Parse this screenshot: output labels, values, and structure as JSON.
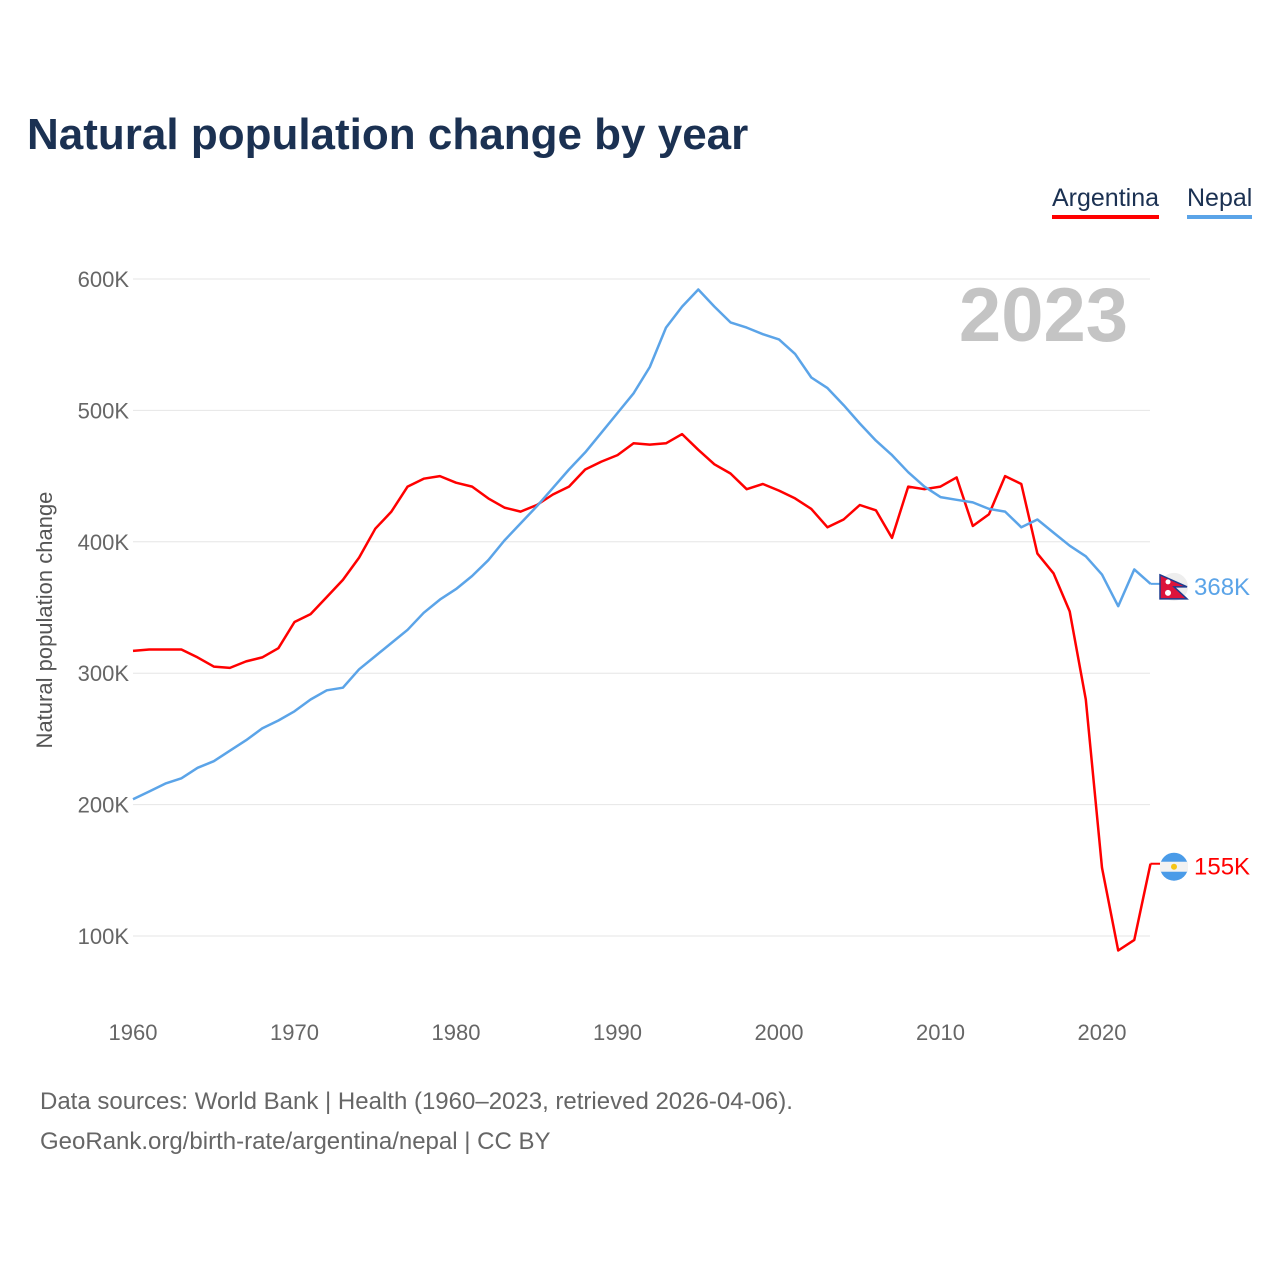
{
  "title": "Natural population change by year",
  "legend": {
    "argentina": "Argentina",
    "nepal": "Nepal"
  },
  "sources": {
    "line1": "Data sources: World Bank | Health (1960–2023, retrieved 2026-04-06).",
    "line2": "GeoRank.org/birth-rate/argentina/nepal | CC BY"
  },
  "chart_data": {
    "type": "line",
    "title": "Natural population change by year",
    "ylabel": "Natural population change",
    "xlabel": "",
    "year_watermark": "2023",
    "xlim": [
      1960,
      2023
    ],
    "ylim": [
      50000,
      620000
    ],
    "x_ticks": [
      1960,
      1970,
      1980,
      1990,
      2000,
      2010,
      2020
    ],
    "y_ticks": [
      100000,
      200000,
      300000,
      400000,
      500000,
      600000
    ],
    "y_tick_labels": [
      "100K",
      "200K",
      "300K",
      "400K",
      "500K",
      "600K"
    ],
    "grid": true,
    "legend_position": "top-right",
    "x": [
      1960,
      1961,
      1962,
      1963,
      1964,
      1965,
      1966,
      1967,
      1968,
      1969,
      1970,
      1971,
      1972,
      1973,
      1974,
      1975,
      1976,
      1977,
      1978,
      1979,
      1980,
      1981,
      1982,
      1983,
      1984,
      1985,
      1986,
      1987,
      1988,
      1989,
      1990,
      1991,
      1992,
      1993,
      1994,
      1995,
      1996,
      1997,
      1998,
      1999,
      2000,
      2001,
      2002,
      2003,
      2004,
      2005,
      2006,
      2007,
      2008,
      2009,
      2010,
      2011,
      2012,
      2013,
      2014,
      2015,
      2016,
      2017,
      2018,
      2019,
      2020,
      2021,
      2022,
      2023
    ],
    "series": [
      {
        "name": "Argentina",
        "color": "#ff0000",
        "end_label": "155K",
        "flag": "argentina-flag",
        "values": [
          317,
          318,
          318,
          318,
          312,
          305,
          304,
          309,
          312,
          319,
          339,
          345,
          358,
          371,
          388,
          410,
          423,
          442,
          448,
          450,
          445,
          442,
          433,
          426,
          423,
          428,
          436,
          442,
          455,
          461,
          466,
          475,
          474,
          475,
          482,
          470,
          459,
          452,
          440,
          444,
          439,
          433,
          425,
          411,
          417,
          428,
          424,
          403,
          442,
          440,
          442,
          449,
          412,
          421,
          450,
          444,
          391,
          376,
          347,
          280,
          152,
          89,
          97,
          155
        ]
      },
      {
        "name": "Nepal",
        "color": "#5ba4e8",
        "end_label": "368K",
        "flag": "nepal-flag",
        "values": [
          204,
          210,
          216,
          220,
          228,
          233,
          241,
          249,
          258,
          264,
          271,
          280,
          287,
          289,
          303,
          313,
          323,
          333,
          346,
          356,
          364,
          374,
          386,
          401,
          414,
          427,
          441,
          455,
          468,
          483,
          498,
          513,
          533,
          563,
          579,
          592,
          579,
          567,
          563,
          558,
          554,
          543,
          525,
          517,
          504,
          490,
          477,
          466,
          453,
          442,
          434,
          432,
          430,
          425,
          423,
          411,
          417,
          407,
          397,
          389,
          375,
          351,
          379,
          368
        ]
      }
    ],
    "value_unit": "thousands"
  }
}
